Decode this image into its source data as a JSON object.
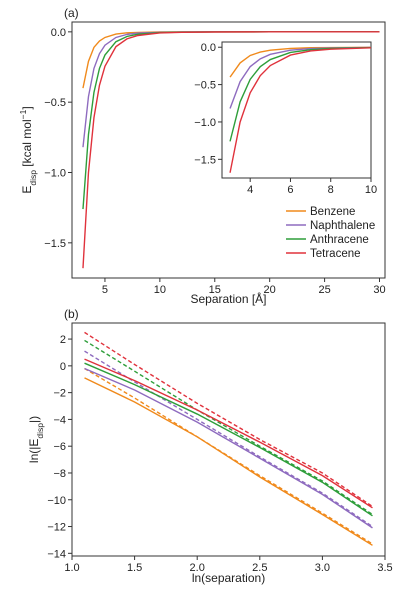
{
  "chart_data": [
    {
      "type": "line",
      "panel_label": "(a)",
      "xlabel": "Separation [Å]",
      "ylabel_main": "E",
      "ylabel_sub": "disp",
      "ylabel_rest": " [kcal mol",
      "ylabel_sup": "−1",
      "ylabel_end": "]",
      "xlim": [
        2,
        30.5
      ],
      "ylim": [
        -1.75,
        0.07
      ],
      "xticks": [
        5,
        10,
        15,
        20,
        25,
        30
      ],
      "yticks": [
        0.0,
        -0.5,
        -1.0,
        -1.5
      ],
      "grid": false,
      "legend_position": "bottom-right",
      "series": [
        {
          "name": "Benzene",
          "color": "#f08a1c",
          "x": [
            3,
            3.5,
            4,
            4.5,
            5,
            6,
            7,
            8,
            10,
            12,
            15,
            20,
            25,
            30
          ],
          "y": [
            -0.4,
            -0.21,
            -0.11,
            -0.065,
            -0.04,
            -0.016,
            -0.007,
            -0.004,
            -0.001,
            -0.0004,
            0,
            0,
            0,
            0
          ]
        },
        {
          "name": "Naphthalene",
          "color": "#8e6bbf",
          "x": [
            3,
            3.5,
            4,
            4.5,
            5,
            6,
            7,
            8,
            10,
            12,
            15,
            20,
            25,
            30
          ],
          "y": [
            -0.82,
            -0.46,
            -0.26,
            -0.155,
            -0.095,
            -0.04,
            -0.018,
            -0.009,
            -0.003,
            -0.001,
            0,
            0,
            0,
            0
          ]
        },
        {
          "name": "Anthracene",
          "color": "#2e9e3a",
          "x": [
            3,
            3.5,
            4,
            4.5,
            5,
            6,
            7,
            8,
            10,
            12,
            15,
            20,
            25,
            30
          ],
          "y": [
            -1.26,
            -0.73,
            -0.43,
            -0.26,
            -0.165,
            -0.07,
            -0.033,
            -0.017,
            -0.005,
            -0.002,
            -0.0005,
            0,
            0,
            0
          ]
        },
        {
          "name": "Tetracene",
          "color": "#e0323c",
          "x": [
            3,
            3.5,
            4,
            4.5,
            5,
            6,
            7,
            8,
            10,
            12,
            15,
            20,
            25,
            30
          ],
          "y": [
            -1.68,
            -1.0,
            -0.61,
            -0.38,
            -0.245,
            -0.105,
            -0.05,
            -0.026,
            -0.008,
            -0.003,
            -0.001,
            0,
            0,
            0
          ]
        }
      ],
      "inset": {
        "xlim": [
          2.6,
          10
        ],
        "ylim": [
          -1.75,
          0.07
        ],
        "xticks": [
          4,
          6,
          8,
          10
        ],
        "yticks": [
          0.0,
          -0.5,
          -1.0,
          -1.5
        ]
      }
    },
    {
      "type": "line",
      "panel_label": "(b)",
      "xlabel": "ln(separation)",
      "ylabel_main": "ln(|E",
      "ylabel_sub": "disp",
      "ylabel_end": "|)",
      "xlim": [
        1.0,
        3.5
      ],
      "ylim": [
        -14.2,
        3.2
      ],
      "xticks": [
        1.0,
        1.5,
        2.0,
        2.5,
        3.0,
        3.5
      ],
      "yticks": [
        2,
        0,
        -2,
        -4,
        -6,
        -8,
        -10,
        -12,
        -14
      ],
      "grid": false,
      "series": [
        {
          "name": "Benzene",
          "color": "#f08a1c",
          "style": "solid",
          "x": [
            1.1,
            1.5,
            2.0,
            2.5,
            3.0,
            3.4
          ],
          "y": [
            -0.9,
            -2.7,
            -5.3,
            -8.3,
            -11.1,
            -13.4
          ]
        },
        {
          "name": "Benzene",
          "color": "#f08a1c",
          "style": "dashed",
          "x": [
            1.1,
            1.5,
            2.0,
            2.5,
            3.0,
            3.4
          ],
          "y": [
            -0.2,
            -2.4,
            -5.3,
            -8.2,
            -11.0,
            -13.3
          ]
        },
        {
          "name": "Naphthalene",
          "color": "#8e6bbf",
          "style": "solid",
          "x": [
            1.1,
            1.5,
            2.0,
            2.5,
            3.0,
            3.4
          ],
          "y": [
            -0.2,
            -1.8,
            -4.2,
            -6.9,
            -9.6,
            -12.1
          ]
        },
        {
          "name": "Naphthalene",
          "color": "#8e6bbf",
          "style": "dashed",
          "x": [
            1.1,
            1.5,
            2.0,
            2.5,
            3.0,
            3.4
          ],
          "y": [
            1.1,
            -1.2,
            -4.0,
            -6.8,
            -9.5,
            -12.0
          ]
        },
        {
          "name": "Anthracene",
          "color": "#2e9e3a",
          "style": "solid",
          "x": [
            1.1,
            1.5,
            2.0,
            2.5,
            3.0,
            3.4
          ],
          "y": [
            0.2,
            -1.4,
            -3.6,
            -6.1,
            -8.7,
            -11.2
          ]
        },
        {
          "name": "Anthracene",
          "color": "#2e9e3a",
          "style": "dashed",
          "x": [
            1.1,
            1.5,
            2.0,
            2.5,
            3.0,
            3.4
          ],
          "y": [
            1.9,
            -0.4,
            -3.3,
            -6.0,
            -8.6,
            -11.1
          ]
        },
        {
          "name": "Tetracene",
          "color": "#e0323c",
          "style": "solid",
          "x": [
            1.1,
            1.5,
            2.0,
            2.5,
            3.0,
            3.4
          ],
          "y": [
            0.5,
            -1.1,
            -3.3,
            -5.7,
            -8.2,
            -10.6
          ]
        },
        {
          "name": "Tetracene",
          "color": "#e0323c",
          "style": "dashed",
          "x": [
            1.1,
            1.5,
            2.0,
            2.5,
            3.0,
            3.4
          ],
          "y": [
            2.5,
            0.1,
            -2.8,
            -5.5,
            -8.0,
            -10.5
          ]
        }
      ]
    }
  ]
}
